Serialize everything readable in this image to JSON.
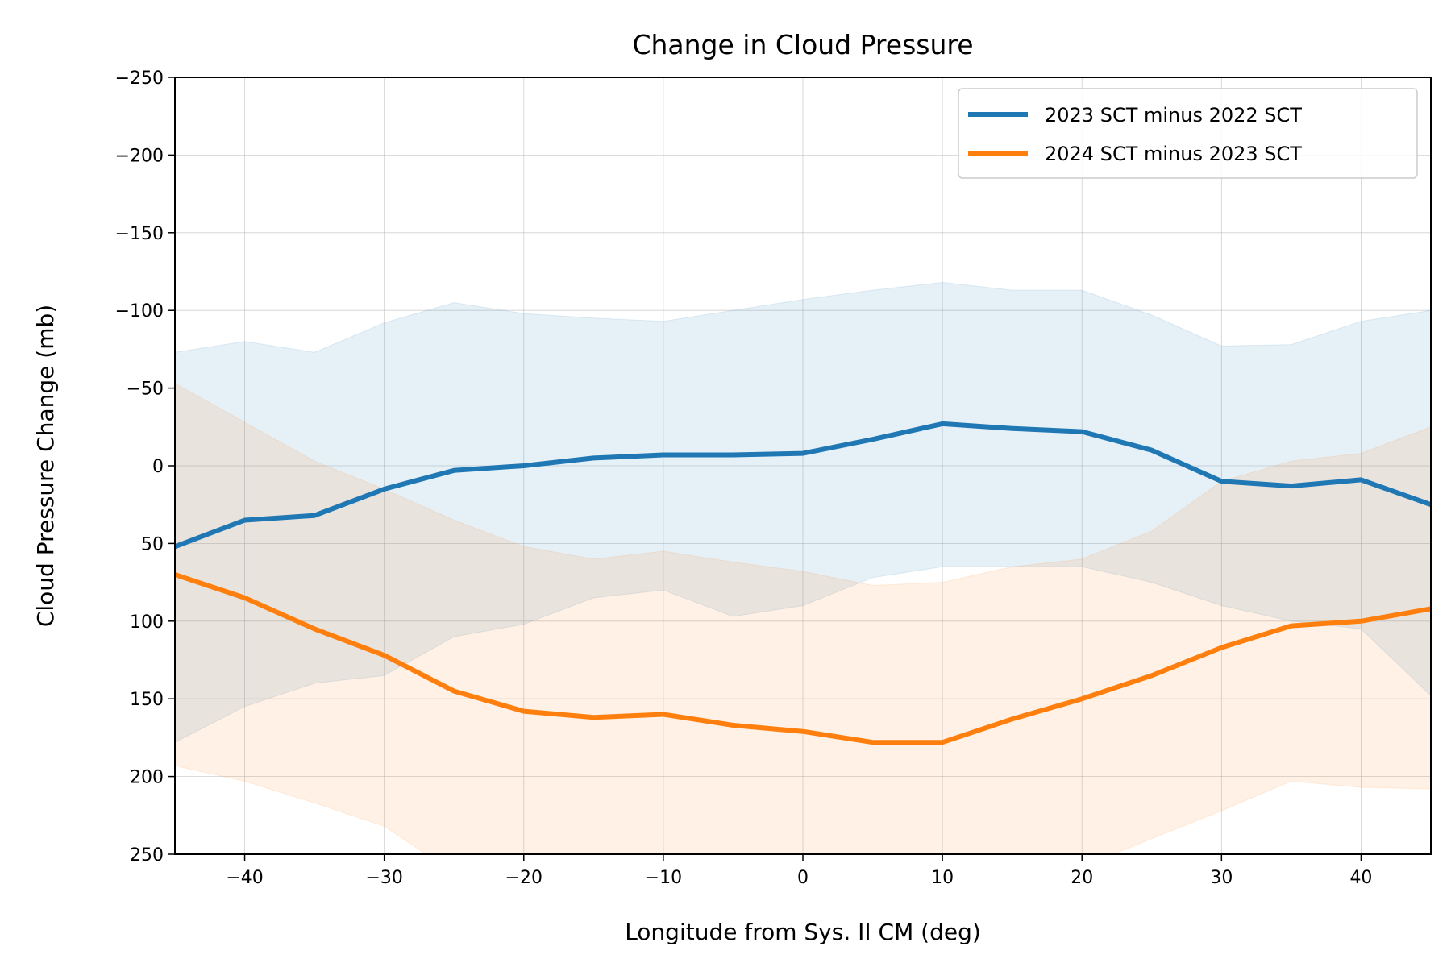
{
  "chart_data": {
    "type": "line",
    "title": "Change in Cloud Pressure",
    "xlabel": "Longitude from Sys. II CM (deg)",
    "ylabel": "Cloud Pressure Change (mb)",
    "xlim": [
      -45,
      45
    ],
    "ylim": [
      250,
      -250
    ],
    "y_inverted": true,
    "grid": true,
    "legend_position": "upper right",
    "x_ticks": [
      -40,
      -30,
      -20,
      -10,
      0,
      10,
      20,
      30,
      40
    ],
    "x_tick_labels": [
      "−40",
      "−30",
      "−20",
      "−10",
      "0",
      "10",
      "20",
      "30",
      "40"
    ],
    "y_ticks": [
      -250,
      -200,
      -150,
      -100,
      -50,
      0,
      50,
      100,
      150,
      200,
      250
    ],
    "y_tick_labels": [
      "−250",
      "−200",
      "−150",
      "−100",
      "−50",
      "0",
      "50",
      "100",
      "150",
      "200",
      "250"
    ],
    "x": [
      -45,
      -40,
      -35,
      -30,
      -25,
      -20,
      -15,
      -10,
      -5,
      0,
      5,
      10,
      15,
      20,
      25,
      30,
      35,
      40,
      45
    ],
    "series": [
      {
        "name": "2023 SCT minus 2022 SCT",
        "color": "#1f77b4",
        "band_color": "#1f77b4",
        "values": [
          52,
          35,
          32,
          15,
          3,
          0,
          -5,
          -7,
          -7,
          -8,
          -17,
          -27,
          -24,
          -22,
          -10,
          10,
          13,
          9,
          25
        ],
        "band_upper": [
          -73,
          -80,
          -73,
          -92,
          -105,
          -98,
          -95,
          -93,
          -100,
          -107,
          -113,
          -118,
          -113,
          -113,
          -97,
          -77,
          -78,
          -93,
          -100
        ],
        "band_lower": [
          178,
          155,
          140,
          135,
          110,
          102,
          85,
          80,
          97,
          90,
          72,
          65,
          65,
          65,
          75,
          90,
          100,
          105,
          148
        ]
      },
      {
        "name": "2024 SCT minus 2023 SCT",
        "color": "#ff7f0e",
        "band_color": "#ff7f0e",
        "values": [
          70,
          85,
          105,
          122,
          145,
          158,
          162,
          160,
          167,
          171,
          178,
          178,
          163,
          150,
          135,
          117,
          103,
          100,
          92
        ],
        "band_upper": [
          -53,
          -28,
          -3,
          15,
          35,
          52,
          60,
          55,
          62,
          68,
          77,
          75,
          65,
          60,
          42,
          10,
          -3,
          -8,
          -25
        ],
        "band_lower": [
          193,
          203,
          217,
          232,
          262,
          270,
          275,
          290,
          300,
          305,
          300,
          290,
          270,
          258,
          240,
          222,
          203,
          207,
          208
        ]
      }
    ]
  }
}
